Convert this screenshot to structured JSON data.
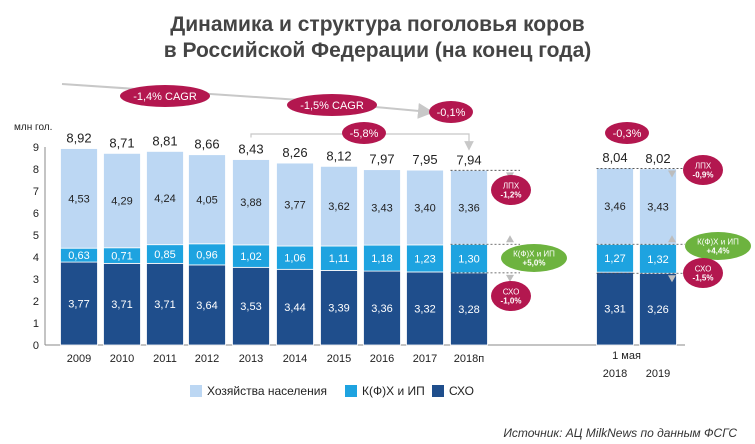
{
  "title_line1": "Динамика и структура поголовья коров",
  "title_line2": "в Российской Федерации (на конец года)",
  "source": "Источник: АЦ MilkNews по данным ФСГС",
  "colors": {
    "hh": "#bcd7f3",
    "kfh": "#1ea3e0",
    "sho": "#1f4e8c",
    "badge": "#b3174f",
    "green": "#6db33f",
    "arrow": "#c8c8c8"
  },
  "chart_data": {
    "type": "bar",
    "stacked": true,
    "ylabel": "млн гол.",
    "ylim": [
      0,
      9
    ],
    "yticks": [
      "0",
      "1",
      "2",
      "3",
      "4",
      "5",
      "6",
      "7",
      "8",
      "9"
    ],
    "categories": [
      "2009",
      "2010",
      "2011",
      "2012",
      "2013",
      "2014",
      "2015",
      "2016",
      "2017",
      "2018п",
      "2018",
      "2019"
    ],
    "group_label": "1 мая",
    "totals": [
      "8,92",
      "8,71",
      "8,81",
      "8,66",
      "8,43",
      "8,26",
      "8,12",
      "7,97",
      "7,95",
      "7,94",
      "8,04",
      "8,02"
    ],
    "series": [
      {
        "name": "СХО",
        "color": "#1f4e8c",
        "values": [
          3.77,
          3.71,
          3.71,
          3.64,
          3.53,
          3.44,
          3.39,
          3.36,
          3.32,
          3.28,
          3.31,
          3.26
        ],
        "labels": [
          "3,77",
          "3,71",
          "3,71",
          "3,64",
          "3,53",
          "3,44",
          "3,39",
          "3,36",
          "3,32",
          "3,28",
          "3,31",
          "3,26"
        ]
      },
      {
        "name": "К(Ф)Х и ИП",
        "color": "#1ea3e0",
        "values": [
          0.63,
          0.71,
          0.85,
          0.96,
          1.02,
          1.06,
          1.11,
          1.18,
          1.23,
          1.3,
          1.27,
          1.32
        ],
        "labels": [
          "0,63",
          "0,71",
          "0,85",
          "0,96",
          "1,02",
          "1,06",
          "1,11",
          "1,18",
          "1,23",
          "1,30",
          "1,27",
          "1,32"
        ]
      },
      {
        "name": "Хозяйства населения",
        "color": "#bcd7f3",
        "values": [
          4.53,
          4.29,
          4.24,
          4.05,
          3.88,
          3.77,
          3.62,
          3.43,
          3.4,
          3.36,
          3.46,
          3.43
        ],
        "labels": [
          "4,53",
          "4,29",
          "4,24",
          "4,05",
          "3,88",
          "3,77",
          "3,62",
          "3,43",
          "3,40",
          "3,36",
          "3,46",
          "3,43"
        ]
      }
    ],
    "legend": [
      "Хозяйства населения",
      "К(Ф)Х и ИП",
      "СХО"
    ],
    "annotations": {
      "cagr1": "-1,4% CAGR",
      "cagr2": "-1,5% CAGR",
      "yoy_2018": "-0,1%",
      "change_2013_2018": "-5,8%",
      "yoy_may": "-0,3%",
      "right1": {
        "lph": [
          "ЛПХ",
          "-1,2%"
        ],
        "kfh": [
          "К(Ф)Х и ИП",
          "+5,0%"
        ],
        "sho": [
          "СХО",
          "-1,0%"
        ]
      },
      "right2": {
        "lph": [
          "ЛПХ",
          "-0,9%"
        ],
        "kfh": [
          "К(Ф)Х и ИП",
          "+4,4%"
        ],
        "sho": [
          "СХО",
          "-1,5%"
        ]
      }
    }
  }
}
